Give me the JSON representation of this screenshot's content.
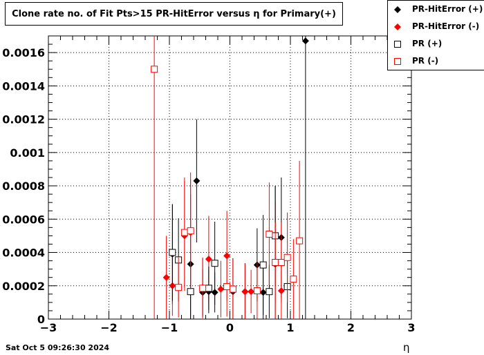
{
  "chart_data": {
    "type": "scatter",
    "title": "Clone rate no. of Fit Pts>15 PR-HitError versus η for Primary(+)",
    "xlabel": "η",
    "ylabel": "",
    "xlim": [
      -3,
      3
    ],
    "ylim": [
      0,
      0.0017
    ],
    "x_ticks": [
      "−3",
      "−2",
      "−1",
      "0",
      "1",
      "2",
      "3"
    ],
    "y_ticks": [
      "0",
      "0.0002",
      "0.0004",
      "0.0006",
      "0.0008",
      "0.001",
      "0.0012",
      "0.0014",
      "0.0016"
    ],
    "grid": true,
    "legend_position": "top-right",
    "series": [
      {
        "name": "PR-HitError (+)",
        "color": "#000000",
        "marker": "filled-diamond",
        "points": [
          {
            "x": -0.95,
            "y": 0.00039,
            "err": 0.0003
          },
          {
            "x": -0.65,
            "y": 0.00033,
            "err": 0.00042
          },
          {
            "x": -0.55,
            "y": 0.00083,
            "err": 0.00037
          },
          {
            "x": -0.45,
            "y": 0.00016,
            "err": 0.00014
          },
          {
            "x": -0.35,
            "y": 0.000165,
            "err": 0.00013
          },
          {
            "x": -0.25,
            "y": 0.00016,
            "err": 0.00012
          },
          {
            "x": 0.05,
            "y": 0.000165,
            "err": 0.0002
          },
          {
            "x": 0.25,
            "y": 0.000165,
            "err": 0.00017
          },
          {
            "x": 0.45,
            "y": 0.000325,
            "err": 0.00022
          },
          {
            "x": 0.55,
            "y": 0.00016,
            "err": 0.00017
          },
          {
            "x": 0.75,
            "y": 0.00033,
            "err": 0.00047
          },
          {
            "x": 0.85,
            "y": 0.00049,
            "err": 0.00036
          },
          {
            "x": 1.25,
            "y": 0.00167,
            "err": 0.0017
          }
        ]
      },
      {
        "name": "PR-HitError (-)",
        "color": "#ff0000",
        "marker": "filled-diamond",
        "points": [
          {
            "x": -1.05,
            "y": 0.00025,
            "err": 0.00025
          },
          {
            "x": -0.95,
            "y": 0.0002,
            "err": 0.00018
          },
          {
            "x": -0.75,
            "y": 0.0005,
            "err": 0.00033
          },
          {
            "x": -0.65,
            "y": 0.00052,
            "err": 0.00032
          },
          {
            "x": -0.45,
            "y": 0.00019,
            "err": 0.00018
          },
          {
            "x": -0.35,
            "y": 0.00036,
            "err": 0.00026
          },
          {
            "x": -0.15,
            "y": 0.00018,
            "err": 0.00017
          },
          {
            "x": -0.05,
            "y": 0.00038,
            "err": 0.00027
          },
          {
            "x": 0.25,
            "y": 0.000165,
            "err": 0.00017
          },
          {
            "x": 0.35,
            "y": 0.000165,
            "err": 0.00013
          },
          {
            "x": 0.75,
            "y": 0.000335,
            "err": 0.00037
          },
          {
            "x": 0.85,
            "y": 0.00017,
            "err": 0.00017
          }
        ]
      },
      {
        "name": "PR (+)",
        "color": "#000000",
        "marker": "open-square",
        "points": [
          {
            "x": -0.95,
            "y": 0.0004,
            "err": 0.00029
          },
          {
            "x": -0.85,
            "y": 0.000355,
            "err": 0.00025
          },
          {
            "x": -0.65,
            "y": 0.000165,
            "err": 0.00016
          },
          {
            "x": -0.35,
            "y": 0.000185,
            "err": 0.00013
          },
          {
            "x": -0.25,
            "y": 0.000335,
            "err": 0.00025
          },
          {
            "x": 0.55,
            "y": 0.000325,
            "err": 0.0003
          },
          {
            "x": 0.65,
            "y": 0.000165,
            "err": 0.00016
          },
          {
            "x": 0.75,
            "y": 0.0005,
            "err": 0.0003
          },
          {
            "x": 0.95,
            "y": 0.000195,
            "err": 0.00019
          }
        ]
      },
      {
        "name": "PR (-)",
        "color": "#ff0000",
        "marker": "open-square",
        "points": [
          {
            "x": -1.25,
            "y": 0.0015,
            "err": 0.0015
          },
          {
            "x": -0.85,
            "y": 0.00019,
            "err": 0.00018
          },
          {
            "x": -0.75,
            "y": 0.00052,
            "err": 0.00033
          },
          {
            "x": -0.65,
            "y": 0.00053,
            "err": 0.00035
          },
          {
            "x": -0.45,
            "y": 0.000185,
            "err": 0.00018
          },
          {
            "x": -0.05,
            "y": 0.000195,
            "err": 0.00018
          },
          {
            "x": 0.05,
            "y": 0.00018,
            "err": 0.00018
          },
          {
            "x": 0.45,
            "y": 0.00017,
            "err": 0.00017
          },
          {
            "x": 0.65,
            "y": 0.00051,
            "err": 0.00031
          },
          {
            "x": 0.75,
            "y": 0.00034,
            "err": 0.00024
          },
          {
            "x": 0.85,
            "y": 0.00034,
            "err": 0.00024
          },
          {
            "x": 0.95,
            "y": 0.00037,
            "err": 0.00027
          },
          {
            "x": 1.05,
            "y": 0.00024,
            "err": 0.00024
          },
          {
            "x": 1.15,
            "y": 0.00047,
            "err": 0.00048
          }
        ]
      }
    ]
  },
  "timestamp": "Sat Oct  5 09:26:30 2024"
}
